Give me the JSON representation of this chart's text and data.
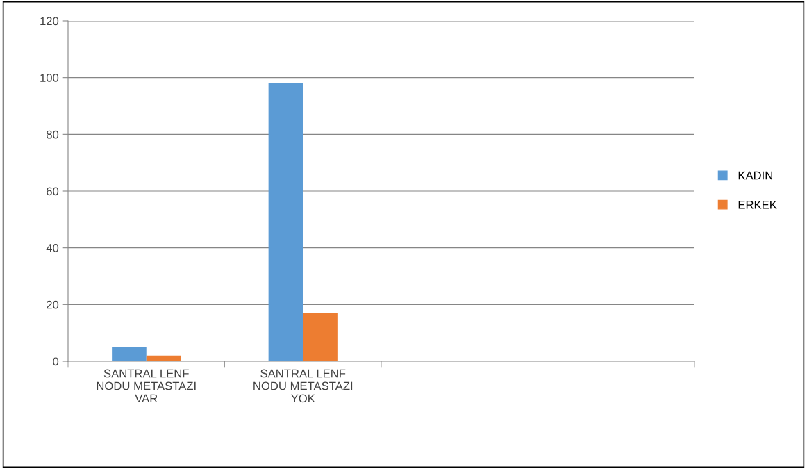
{
  "chart_data": {
    "type": "bar",
    "categories": [
      "SANTRAL LENF\nNODU METASTAZI\nVAR",
      "SANTRAL LENF\nNODU METASTAZI\nYOK",
      null,
      null
    ],
    "series": [
      {
        "name": "KADIN",
        "color": "#5b9bd5",
        "values": [
          5,
          98,
          null,
          null
        ]
      },
      {
        "name": "ERKEK",
        "color": "#ed7d31",
        "values": [
          2,
          17,
          null,
          null
        ]
      }
    ],
    "ylim": [
      0,
      120
    ],
    "yticks": [
      0,
      20,
      40,
      60,
      80,
      100,
      120
    ],
    "grid": "y",
    "legend": "right"
  }
}
